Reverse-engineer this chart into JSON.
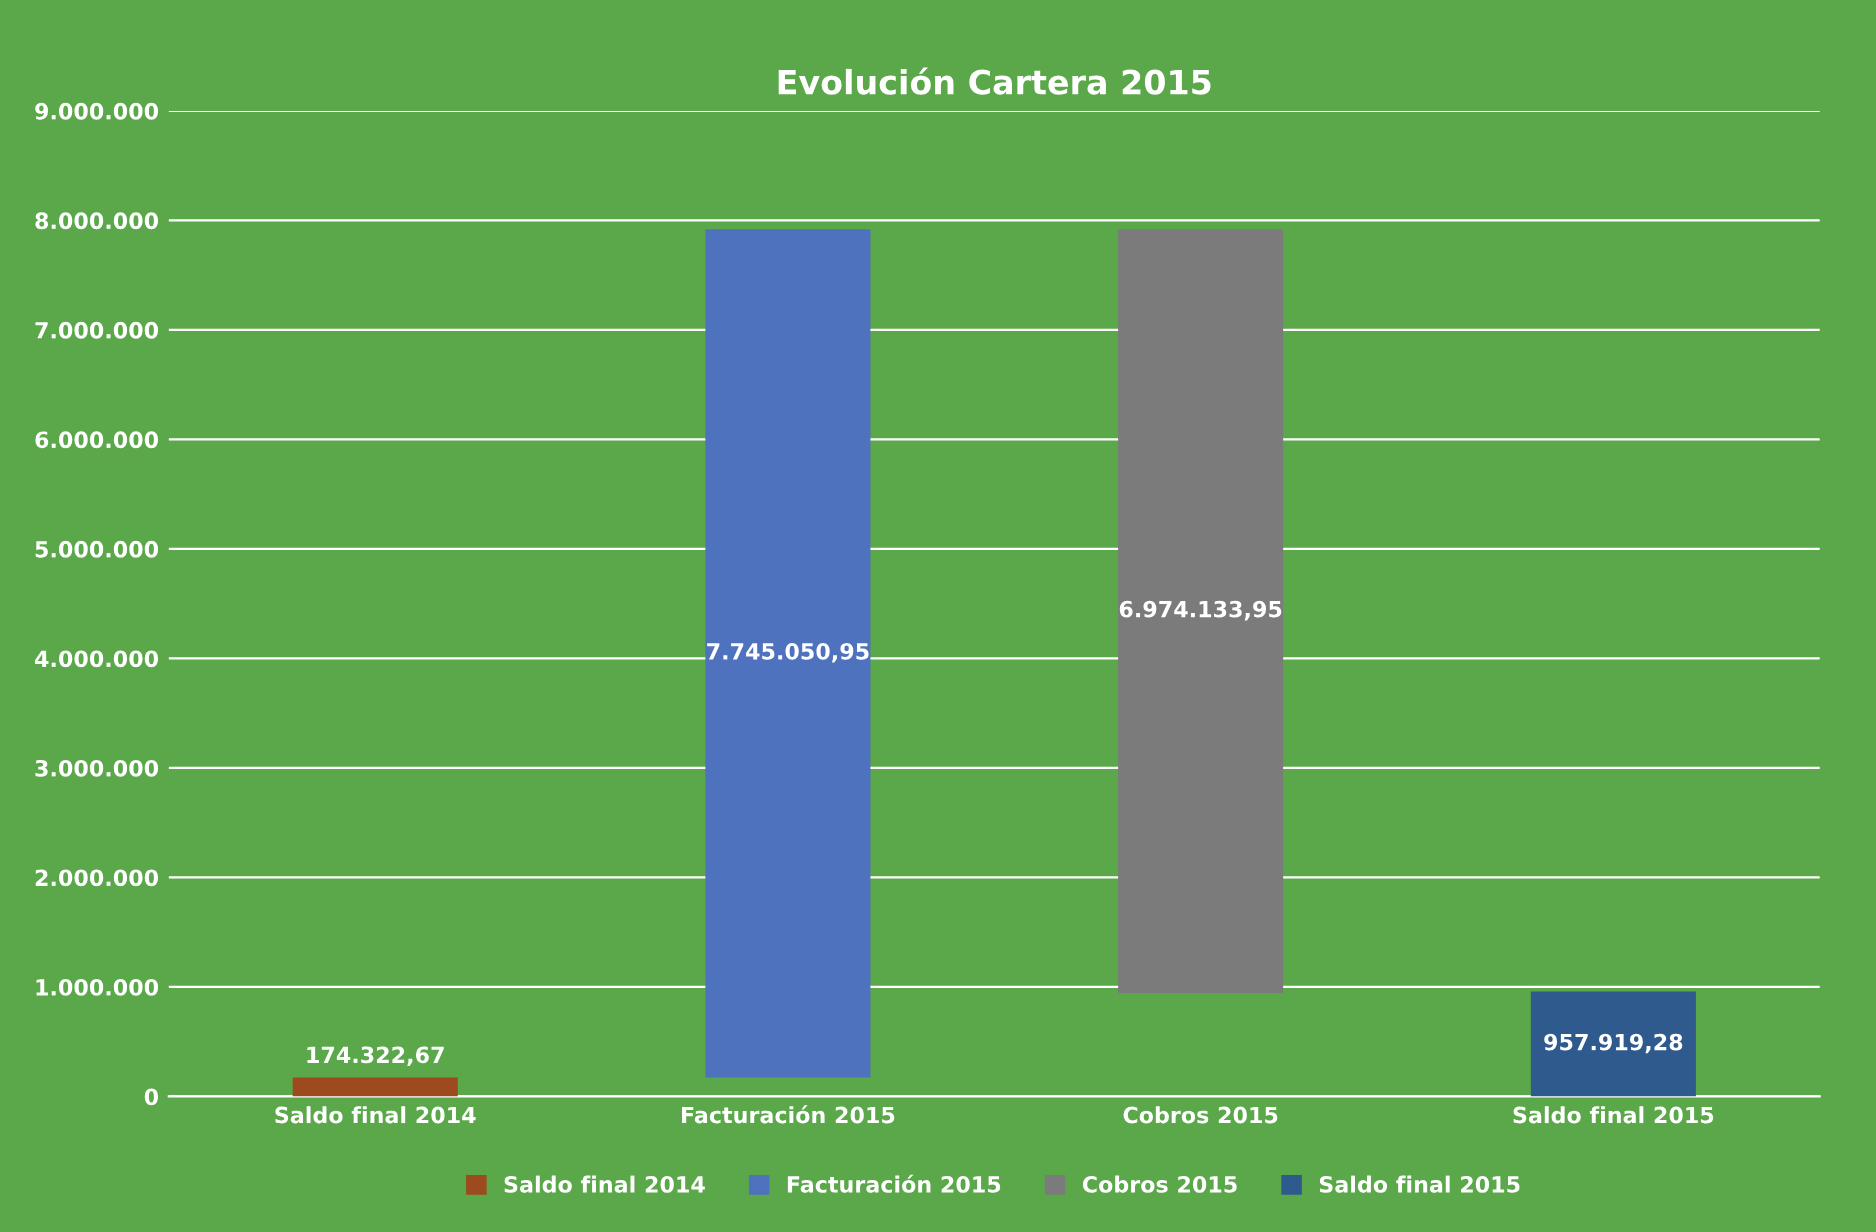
{
  "chart_data": {
    "type": "bar",
    "title": "Evolución Cartera 2015",
    "categories": [
      "Saldo final 2014",
      "Facturación 2015",
      "Cobros 2015",
      "Saldo final 2015"
    ],
    "series": [
      {
        "name": "Saldo final 2014",
        "color": "#9c4a1e",
        "values": [
          174322.67,
          null,
          null,
          null
        ],
        "base": [
          0,
          null,
          null,
          null
        ],
        "value_labels": [
          "174.322,67",
          null,
          null,
          null
        ]
      },
      {
        "name": "Facturación 2015",
        "color": "#4f72be",
        "values": [
          null,
          7745050.95,
          null,
          null
        ],
        "base": [
          null,
          174322.67,
          null,
          null
        ],
        "value_labels": [
          null,
          "7.745.050,95",
          null,
          null
        ]
      },
      {
        "name": "Cobros 2015",
        "color": "#7b7b7b",
        "values": [
          null,
          null,
          6974133.95,
          null
        ],
        "base": [
          null,
          null,
          945239.67,
          null
        ],
        "value_labels": [
          null,
          null,
          "6.974.133,95",
          null
        ]
      },
      {
        "name": "Saldo final 2015",
        "color": "#2e5a8e",
        "values": [
          null,
          null,
          null,
          957919.28
        ],
        "base": [
          null,
          null,
          null,
          0
        ],
        "value_labels": [
          null,
          null,
          null,
          "957.919,28"
        ]
      }
    ],
    "ylim": [
      0,
      9000000
    ],
    "yticks": [
      {
        "value": 0,
        "label": "0"
      },
      {
        "value": 1000000,
        "label": "1.000.000"
      },
      {
        "value": 2000000,
        "label": "2.000.000"
      },
      {
        "value": 3000000,
        "label": "3.000.000"
      },
      {
        "value": 4000000,
        "label": "4.000.000"
      },
      {
        "value": 5000000,
        "label": "5.000.000"
      },
      {
        "value": 6000000,
        "label": "6.000.000"
      },
      {
        "value": 7000000,
        "label": "7.000.000"
      },
      {
        "value": 8000000,
        "label": "8.000.000"
      },
      {
        "value": 9000000,
        "label": "9.000.000"
      }
    ],
    "grid": "y",
    "legend": "bottom"
  }
}
